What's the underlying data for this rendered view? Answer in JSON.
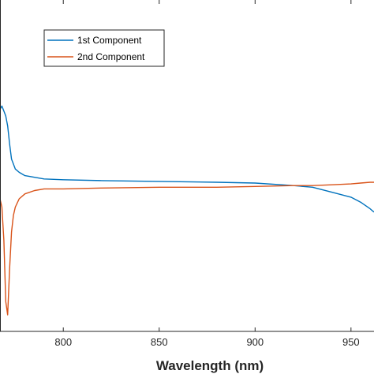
{
  "chart_data": {
    "type": "line",
    "xlabel": "Wavelength (nm)",
    "ylabel": "",
    "title": "",
    "xlim": [
      767,
      962
    ],
    "ylim": [
      -1,
      1
    ],
    "xticks": [
      800,
      850,
      900,
      950
    ],
    "xtick_labels": [
      "800",
      "850",
      "900",
      "950"
    ],
    "grid": false,
    "legend_position": "top-left",
    "series": [
      {
        "name": "1st Component",
        "color": "#0072BD",
        "x": [
          767,
          768,
          769,
          770,
          771,
          772,
          773,
          774,
          775,
          777,
          780,
          785,
          790,
          800,
          820,
          850,
          880,
          900,
          920,
          930,
          940,
          950,
          955,
          960,
          962
        ],
        "y": [
          0.34,
          0.36,
          0.33,
          0.3,
          0.24,
          0.13,
          0.04,
          0.01,
          -0.02,
          -0.04,
          -0.06,
          -0.07,
          -0.08,
          -0.085,
          -0.09,
          -0.095,
          -0.1,
          -0.105,
          -0.12,
          -0.13,
          -0.16,
          -0.19,
          -0.22,
          -0.26,
          -0.28
        ]
      },
      {
        "name": "2nd Component",
        "color": "#D95319",
        "x": [
          767,
          768,
          769,
          770,
          771,
          772,
          773,
          774,
          775,
          777,
          780,
          785,
          790,
          800,
          820,
          850,
          880,
          900,
          920,
          930,
          940,
          950,
          955,
          960,
          962
        ],
        "y": [
          -0.2,
          -0.25,
          -0.45,
          -0.82,
          -0.9,
          -0.62,
          -0.4,
          -0.3,
          -0.25,
          -0.2,
          -0.17,
          -0.15,
          -0.14,
          -0.14,
          -0.135,
          -0.13,
          -0.13,
          -0.125,
          -0.12,
          -0.12,
          -0.115,
          -0.11,
          -0.105,
          -0.1,
          -0.1
        ]
      }
    ]
  }
}
